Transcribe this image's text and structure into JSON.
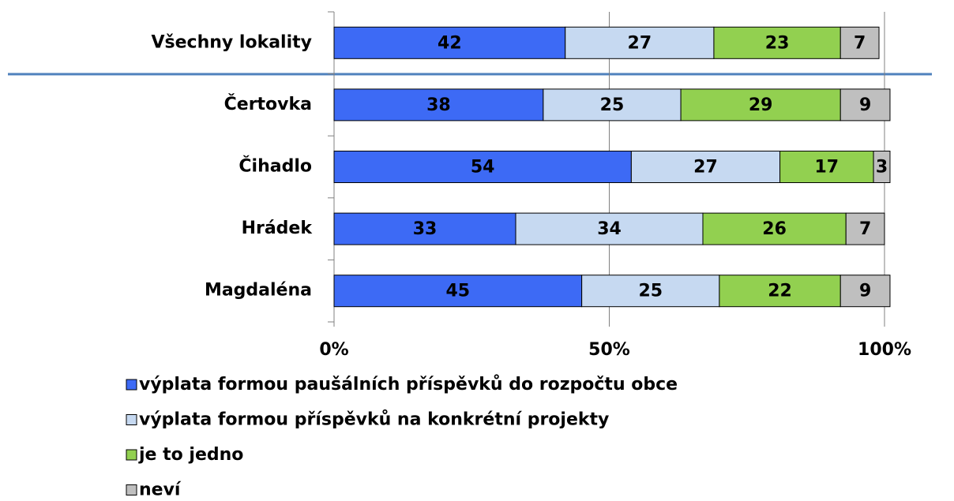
{
  "chart_data": {
    "type": "stacked_barh",
    "categories": [
      "Všechny lokality",
      "Čertovka",
      "Čihadlo",
      "Hrádek",
      "Magdaléna"
    ],
    "series": [
      {
        "name": "výplata formou paušálních příspěvků do rozpočtu obce",
        "color": "#3d6af5",
        "values": [
          42,
          38,
          54,
          33,
          45
        ]
      },
      {
        "name": "výplata formou příspěvků na konkrétní projekty",
        "color": "#c6d9f1",
        "values": [
          27,
          25,
          27,
          34,
          25
        ]
      },
      {
        "name": "je to jedno",
        "color": "#92d050",
        "values": [
          23,
          29,
          17,
          26,
          22
        ]
      },
      {
        "name": "neví",
        "color": "#bfbfbf",
        "values": [
          7,
          9,
          3,
          7,
          9
        ]
      }
    ],
    "xlim": [
      0,
      100
    ],
    "xticks": [
      {
        "value": 0,
        "label": "0%"
      },
      {
        "value": 50,
        "label": "50%"
      },
      {
        "value": 100,
        "label": "100%"
      }
    ],
    "grid": true
  }
}
